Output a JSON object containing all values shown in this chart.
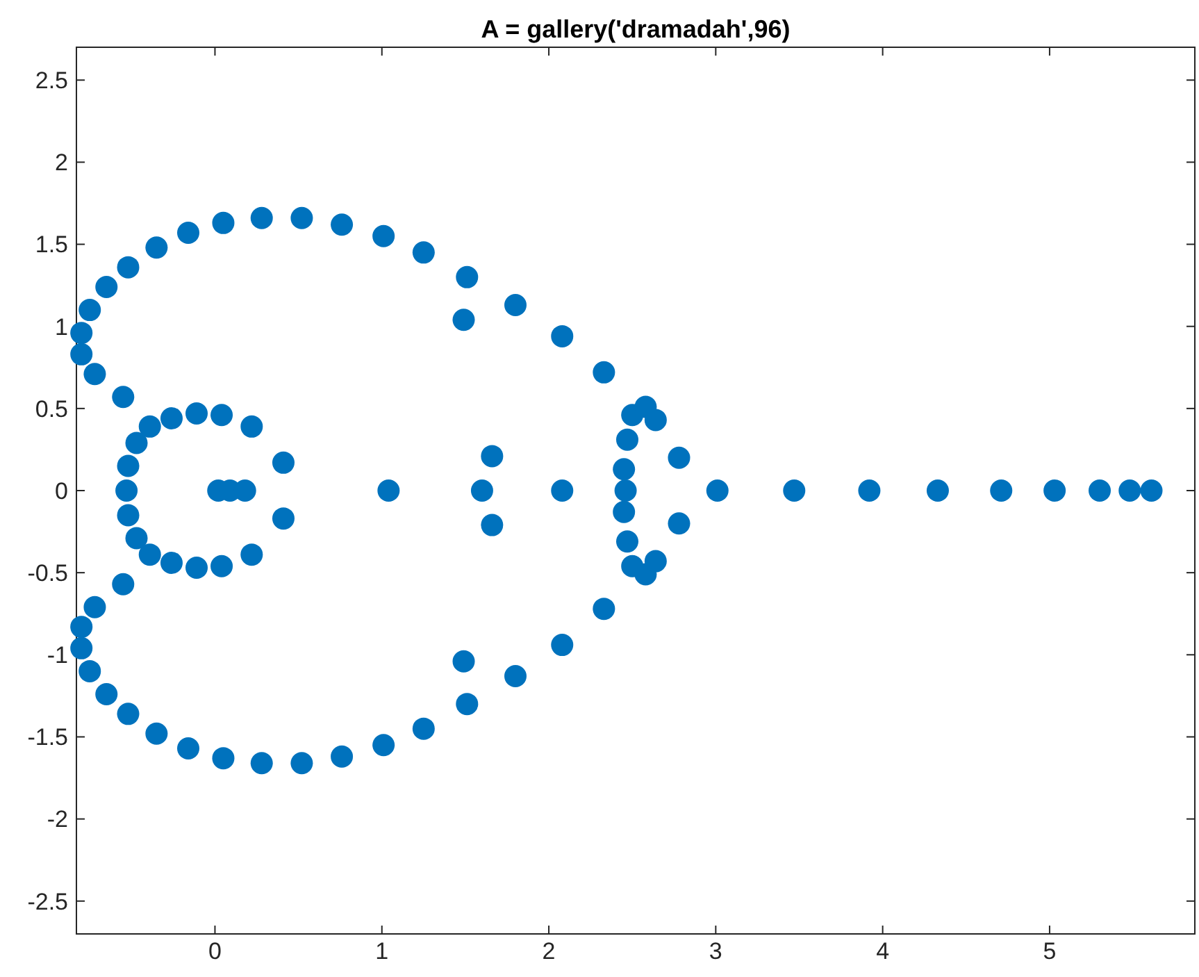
{
  "chart_data": {
    "type": "scatter",
    "title": "A = gallery('dramadah',96)",
    "marker": "circle",
    "grid": false,
    "xlim": [
      -0.83,
      5.87
    ],
    "ylim": [
      -2.7,
      2.7
    ],
    "xticks": [
      0,
      1,
      2,
      3,
      4,
      5
    ],
    "yticks": [
      -2.5,
      -2,
      -1.5,
      -1,
      -0.5,
      0,
      0.5,
      1,
      1.5,
      2,
      2.5
    ],
    "series": [
      {
        "color": "#0072bd",
        "x": [
          -0.8,
          -0.8,
          -0.72,
          -0.75,
          -0.65,
          -0.52,
          -0.35,
          -0.16,
          0.05,
          0.28,
          0.52,
          0.76,
          1.01,
          1.25,
          1.51,
          1.49,
          1.8,
          2.08,
          2.33,
          2.5,
          2.58,
          2.64,
          2.78,
          2.47,
          2.45,
          -0.55,
          -0.47,
          -0.52,
          -0.39,
          -0.26,
          -0.11,
          0.04,
          0.22,
          0.41,
          1.66,
          -0.8,
          -0.8,
          -0.72,
          -0.75,
          -0.65,
          -0.52,
          -0.35,
          -0.16,
          0.05,
          0.28,
          0.52,
          0.76,
          1.01,
          1.25,
          1.51,
          1.49,
          1.8,
          2.08,
          2.33,
          2.5,
          2.58,
          2.64,
          2.78,
          2.47,
          2.45,
          -0.55,
          -0.47,
          -0.52,
          -0.39,
          -0.26,
          -0.11,
          0.04,
          0.22,
          0.41,
          1.66,
          -0.53,
          0.02,
          0.09,
          0.18,
          1.04,
          1.6,
          2.08,
          2.46,
          3.01,
          3.47,
          3.92,
          4.33,
          4.71,
          5.03,
          5.3,
          5.48,
          5.61
        ],
        "values": [
          0.96,
          0.83,
          0.71,
          1.1,
          1.24,
          1.36,
          1.48,
          1.57,
          1.63,
          1.66,
          1.66,
          1.62,
          1.55,
          1.45,
          1.3,
          1.04,
          1.13,
          0.94,
          0.72,
          0.46,
          0.51,
          0.43,
          0.2,
          0.31,
          0.13,
          0.57,
          0.29,
          0.15,
          0.39,
          0.44,
          0.47,
          0.46,
          0.39,
          0.17,
          0.21,
          -0.96,
          -0.83,
          -0.71,
          -1.1,
          -1.24,
          -1.36,
          -1.48,
          -1.57,
          -1.63,
          -1.66,
          -1.66,
          -1.62,
          -1.55,
          -1.45,
          -1.3,
          -1.04,
          -1.13,
          -0.94,
          -0.72,
          -0.46,
          -0.51,
          -0.43,
          -0.2,
          -0.31,
          -0.13,
          -0.57,
          -0.29,
          -0.15,
          -0.39,
          -0.44,
          -0.47,
          -0.46,
          -0.39,
          -0.17,
          -0.21,
          0,
          0,
          0,
          0,
          0,
          0,
          0,
          0,
          0,
          0,
          0,
          0,
          0,
          0,
          0,
          0,
          0
        ]
      }
    ]
  }
}
